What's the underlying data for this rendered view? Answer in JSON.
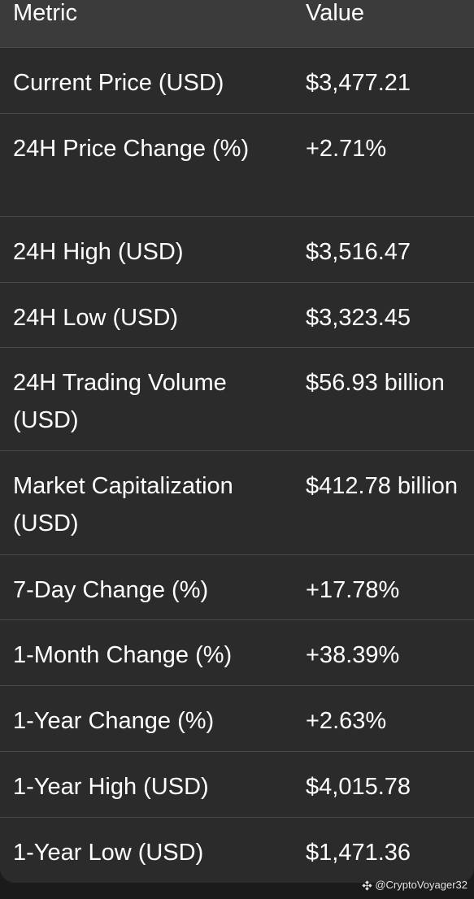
{
  "table": {
    "headers": [
      "Metric",
      "Value"
    ],
    "rows": [
      {
        "metric": "Current Price (USD)",
        "value": "$3,477.21"
      },
      {
        "metric": "24H Price Change (%)",
        "value": "+2.71%"
      },
      {
        "metric": "24H High (USD)",
        "value": "$3,516.47"
      },
      {
        "metric": "24H Low (USD)",
        "value": "$3,323.45"
      },
      {
        "metric": "24H Trading Volume (USD)",
        "value": "$56.93 billion"
      },
      {
        "metric": "Market Capitalization (USD)",
        "value": "$412.78 billion"
      },
      {
        "metric": "7-Day Change (%)",
        "value": "+17.78%"
      },
      {
        "metric": "1-Month Change (%)",
        "value": "+38.39%"
      },
      {
        "metric": "1-Year Change (%)",
        "value": "+2.63%"
      },
      {
        "metric": "1-Year High (USD)",
        "value": "$4,015.78"
      },
      {
        "metric": "1-Year Low (USD)",
        "value": "$1,471.36"
      }
    ]
  },
  "watermark": {
    "icon": "binance-logo-icon",
    "handle": "@CryptoVoyager32"
  },
  "colors": {
    "page_background": "#1b1b1c",
    "card_background": "#2b2b2c",
    "header_background": "#3b3b3c",
    "divider": "#4a4a4b",
    "text": "#ffffff"
  }
}
